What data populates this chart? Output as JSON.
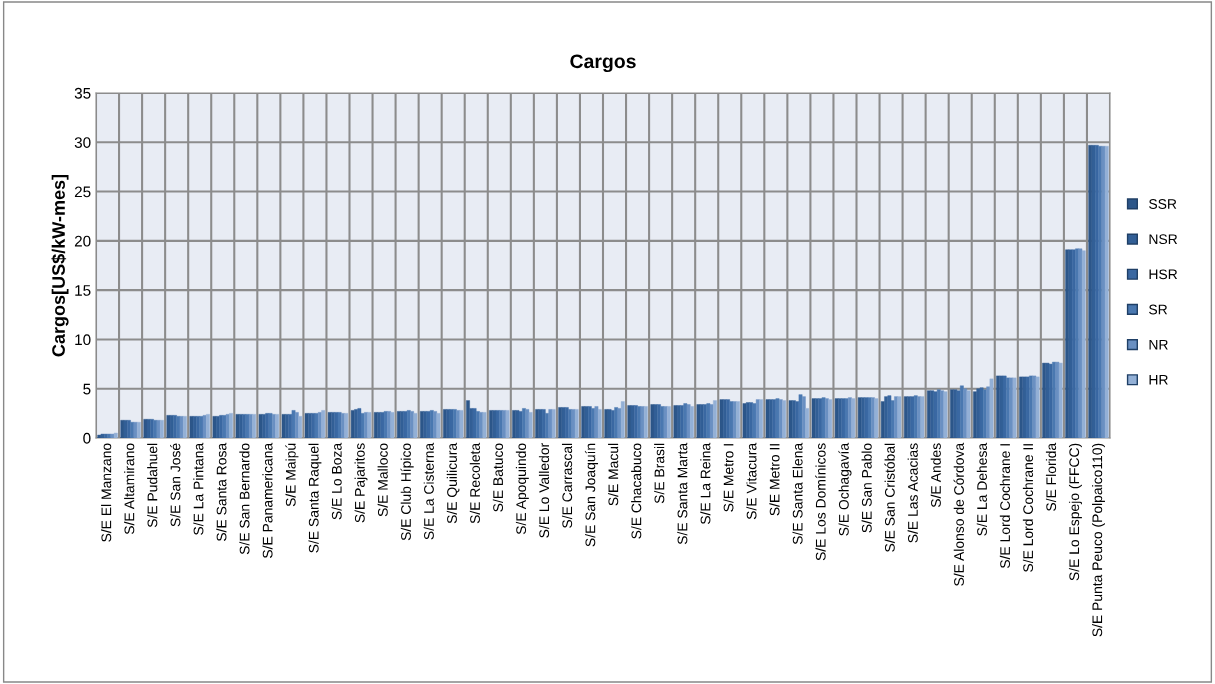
{
  "chart_data": {
    "type": "bar",
    "title": "Cargos",
    "ylabel": "Cargos[US$/kW-mes]",
    "categories": [
      "S/E El Manzano",
      "S/E Altamirano",
      "S/E Pudahuel",
      "S/E San José",
      "S/E La Pintana",
      "S/E Santa Rosa",
      "S/E San Bernardo",
      "S/E Panamericana",
      "S/E Maipú",
      "S/E Santa Raquel",
      "S/E Lo Boza",
      "S/E Pajaritos",
      "S/E Malloco",
      "S/E Club Hípico",
      "S/E La Cisterna",
      "S/E Quilicura",
      "S/E Recoleta",
      "S/E Batuco",
      "S/E Apoquindo",
      "S/E Lo Valledor",
      "S/E Carrascal",
      "S/E San Joaquín",
      "S/E Macul",
      "S/E Chacabuco",
      "S/E Brasil",
      "S/E Santa Marta",
      "S/E La Reina",
      "S/E Metro I",
      "S/E Vitacura",
      "S/E Metro II",
      "S/E Santa Elena",
      "S/E Los Domínicos",
      "S/E Ochagavía",
      "S/E San Pablo",
      "S/E San Cristóbal",
      "S/E Las Acacias",
      "S/E Andes",
      "S/E Alonso de Córdova",
      "S/E La Dehesa",
      "S/E Lord Cochrane I",
      "S/E Lord Cochrane II",
      "S/E Florida",
      "S/E Lo Espejo (FFCC)",
      "S/E Punta Peuco (Polpaico110)"
    ],
    "series": [
      {
        "name": "SSR",
        "color": "#2c5689",
        "values": [
          0.3,
          1.8,
          1.9,
          2.3,
          2.2,
          2.2,
          2.4,
          2.4,
          2.4,
          2.5,
          2.6,
          2.8,
          2.6,
          2.7,
          2.7,
          2.9,
          3.8,
          2.8,
          2.8,
          2.9,
          3.1,
          3.2,
          2.9,
          3.3,
          3.4,
          3.3,
          3.4,
          3.9,
          3.5,
          3.9,
          3.8,
          4.0,
          4.0,
          4.1,
          3.7,
          4.2,
          4.8,
          4.9,
          4.7,
          6.3,
          6.2,
          7.6,
          19.1,
          29.7
        ]
      },
      {
        "name": "NSR",
        "color": "#325f96",
        "values": [
          0.4,
          1.8,
          1.9,
          2.3,
          2.2,
          2.2,
          2.4,
          2.4,
          2.4,
          2.5,
          2.6,
          2.9,
          2.6,
          2.7,
          2.7,
          2.9,
          3.0,
          2.8,
          2.8,
          2.9,
          3.1,
          3.2,
          2.9,
          3.3,
          3.4,
          3.3,
          3.4,
          3.9,
          3.6,
          3.9,
          3.8,
          4.0,
          4.0,
          4.1,
          4.2,
          4.2,
          4.8,
          4.9,
          5.0,
          6.3,
          6.2,
          7.6,
          19.1,
          29.7
        ]
      },
      {
        "name": "HSR",
        "color": "#3a68a2",
        "values": [
          0.4,
          1.8,
          1.9,
          2.3,
          2.2,
          2.3,
          2.4,
          2.5,
          2.4,
          2.5,
          2.6,
          3.0,
          2.6,
          2.7,
          2.7,
          2.9,
          3.0,
          2.8,
          2.7,
          2.9,
          3.1,
          3.2,
          2.8,
          3.3,
          3.4,
          3.3,
          3.4,
          3.9,
          3.6,
          3.9,
          3.7,
          4.0,
          4.0,
          4.1,
          4.3,
          4.2,
          4.7,
          4.8,
          5.1,
          6.3,
          6.2,
          7.5,
          19.1,
          29.7
        ]
      },
      {
        "name": "SR",
        "color": "#4a78b0",
        "values": [
          0.4,
          1.6,
          1.8,
          2.2,
          2.2,
          2.3,
          2.4,
          2.5,
          2.8,
          2.5,
          2.6,
          2.5,
          2.7,
          2.8,
          2.8,
          2.9,
          2.7,
          2.8,
          3.0,
          2.5,
          2.9,
          3.0,
          3.1,
          3.2,
          3.2,
          3.5,
          3.5,
          3.7,
          3.5,
          4.0,
          4.4,
          4.1,
          4.0,
          4.1,
          3.8,
          4.3,
          4.9,
          5.3,
          4.9,
          6.1,
          6.3,
          7.7,
          19.2,
          29.6
        ]
      },
      {
        "name": "NR",
        "color": "#6a90c2",
        "values": [
          0.4,
          1.6,
          1.8,
          2.2,
          2.3,
          2.4,
          2.4,
          2.4,
          2.6,
          2.6,
          2.5,
          2.6,
          2.7,
          2.7,
          2.7,
          2.8,
          2.6,
          2.8,
          2.9,
          2.9,
          2.9,
          3.2,
          3.0,
          3.2,
          3.2,
          3.4,
          3.4,
          3.7,
          3.9,
          3.9,
          4.2,
          4.0,
          4.1,
          4.1,
          4.2,
          4.2,
          4.8,
          5.0,
          5.2,
          6.1,
          6.3,
          7.7,
          19.2,
          29.6
        ]
      },
      {
        "name": "HR",
        "color": "#93b0d6",
        "values": [
          0.5,
          1.6,
          1.8,
          2.2,
          2.4,
          2.5,
          2.4,
          2.4,
          2.2,
          2.8,
          2.5,
          2.6,
          2.6,
          2.5,
          2.5,
          2.8,
          2.6,
          2.8,
          2.6,
          2.9,
          2.9,
          2.9,
          3.7,
          3.2,
          3.2,
          3.2,
          3.8,
          3.7,
          3.9,
          3.8,
          3.0,
          3.9,
          4.0,
          4.0,
          4.2,
          4.2,
          4.7,
          4.8,
          6.0,
          6.1,
          6.2,
          7.6,
          19.0,
          29.6
        ]
      }
    ],
    "ylim": [
      0,
      35
    ],
    "yticks": [
      0,
      5,
      10,
      15,
      20,
      25,
      30,
      35
    ],
    "grid": true,
    "legend": "right"
  }
}
